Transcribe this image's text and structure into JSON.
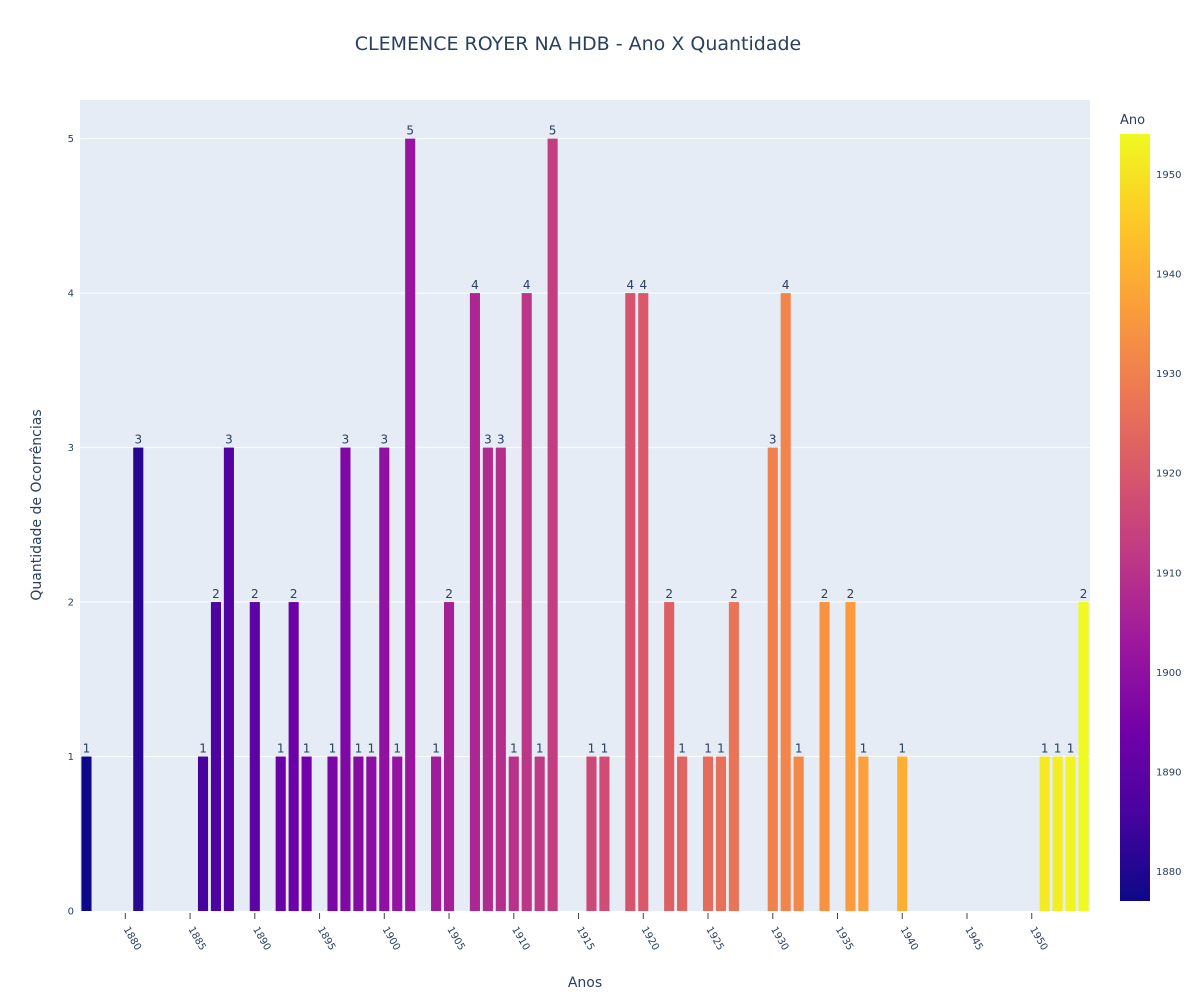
{
  "chart_data": {
    "type": "bar",
    "title": "CLEMENCE ROYER NA HDB - Ano X Quantidade",
    "xlabel": "Anos",
    "ylabel": "Quantidade de Ocorrências",
    "x": [
      1877,
      1881,
      1886,
      1887,
      1888,
      1890,
      1892,
      1893,
      1894,
      1896,
      1897,
      1898,
      1899,
      1900,
      1901,
      1902,
      1904,
      1905,
      1907,
      1908,
      1909,
      1910,
      1911,
      1912,
      1913,
      1916,
      1917,
      1919,
      1920,
      1922,
      1923,
      1925,
      1926,
      1927,
      1930,
      1931,
      1932,
      1934,
      1936,
      1937,
      1940,
      1951,
      1952,
      1953,
      1954
    ],
    "values": [
      1,
      3,
      1,
      2,
      3,
      2,
      1,
      2,
      1,
      1,
      3,
      1,
      1,
      3,
      1,
      5,
      1,
      2,
      4,
      3,
      3,
      1,
      4,
      1,
      5,
      1,
      1,
      4,
      4,
      2,
      1,
      1,
      1,
      2,
      3,
      4,
      1,
      2,
      2,
      1,
      1,
      1,
      1,
      1,
      2
    ],
    "xlim": [
      1876.5,
      1954.5
    ],
    "ylim": [
      0,
      5.25
    ],
    "xticks": [
      "1880",
      "1885",
      "1890",
      "1895",
      "1900",
      "1905",
      "1910",
      "1915",
      "1920",
      "1925",
      "1930",
      "1935",
      "1940",
      "1945",
      "1950"
    ],
    "yticks": [
      "0",
      "1",
      "2",
      "3",
      "4",
      "5"
    ],
    "colorbar": {
      "title": "Ano",
      "ticks": [
        "1880",
        "1890",
        "1900",
        "1910",
        "1920",
        "1930",
        "1940",
        "1950"
      ],
      "range": [
        1877,
        1954
      ],
      "colorscale": [
        "#0d0887",
        "#46039f",
        "#7201a8",
        "#9c179e",
        "#bd3786",
        "#d8576b",
        "#ed7953",
        "#fb9f3a",
        "#fdca26",
        "#f0f921"
      ]
    },
    "plot_background": "#e5ecf6",
    "grid": true
  }
}
